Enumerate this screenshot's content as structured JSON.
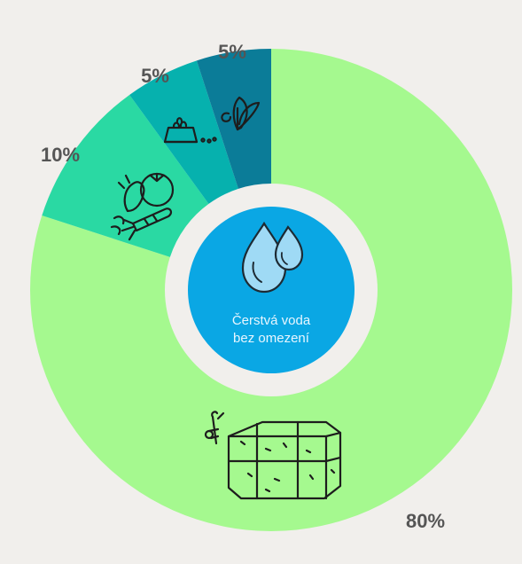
{
  "chart_data": {
    "type": "pie",
    "style": "donut",
    "title": "",
    "center_label": [
      "Čerstvá voda",
      "bez omezení"
    ],
    "slices": [
      {
        "value": 80,
        "label": "80%",
        "color": "#a5f98f",
        "icon": "hay-bale-icon"
      },
      {
        "value": 10,
        "label": "10%",
        "color": "#2ad9a3",
        "icon": "vegetables-icon"
      },
      {
        "value": 5,
        "label": "5%",
        "color": "#06b1ae",
        "icon": "pellet-bowl-icon"
      },
      {
        "value": 5,
        "label": "5%",
        "color": "#0b7c98",
        "icon": "herb-leaves-icon"
      }
    ],
    "start": "top",
    "direction": "clockwise",
    "center_color": "#0aa7e4",
    "background": "#f1efec"
  }
}
